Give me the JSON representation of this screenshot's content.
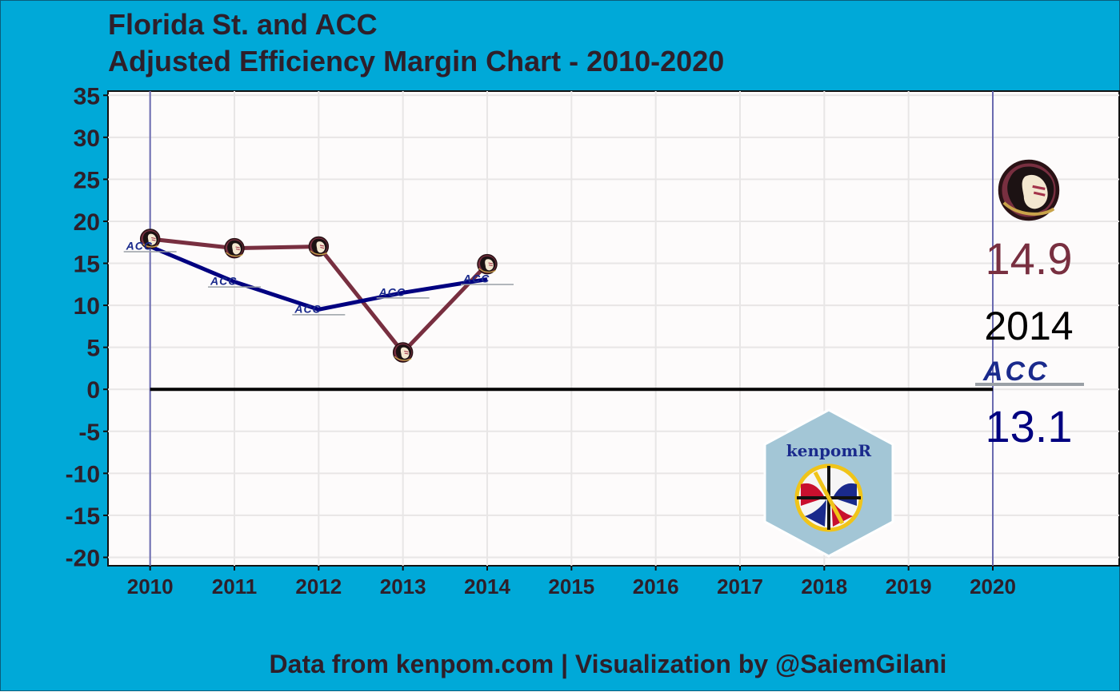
{
  "title_line1": "Florida St. and ACC",
  "title_line2": "Adjusted Efficiency Margin Chart - 2010-2020",
  "caption": "Data from kenpom.com | Visualization by @SaiemGilani",
  "side_panel": {
    "team_value": "14.9",
    "year": "2014",
    "acc_logo_text": "ACC",
    "conf_value": "13.1"
  },
  "kenpom_badge": {
    "label": "kenpomR"
  },
  "colors": {
    "background": "#00a9d8",
    "panel": "#fdfbfb",
    "team": "#782f40",
    "conference": "#000080",
    "grid": "#e8e6e6",
    "title": "#2e1f2a",
    "vline": "#6a6ab0"
  },
  "chart_data": {
    "type": "line",
    "title": "Florida St. and ACC\nAdjusted Efficiency Margin Chart - 2010-2020",
    "xlabel": "",
    "ylabel": "",
    "x": [
      2010,
      2011,
      2012,
      2013,
      2014
    ],
    "x_ticks": [
      "2010",
      "2011",
      "2012",
      "2013",
      "2014",
      "2015",
      "2016",
      "2017",
      "2018",
      "2019",
      "2020"
    ],
    "y_ticks": [
      "35",
      "30",
      "25",
      "20",
      "15",
      "10",
      "5",
      "0",
      "-5",
      "-10",
      "-15",
      "-20"
    ],
    "xlim": [
      2009.5,
      2021.5
    ],
    "ylim": [
      -21,
      35.5
    ],
    "series": [
      {
        "key": "team",
        "values": [
          17.9,
          16.8,
          17.0,
          4.4,
          14.9
        ]
      },
      {
        "key": "conference",
        "values": [
          17.0,
          12.8,
          9.5,
          11.5,
          13.1
        ]
      }
    ],
    "reference_line_y": 0,
    "vertical_lines_x": [
      2010,
      2020
    ]
  }
}
